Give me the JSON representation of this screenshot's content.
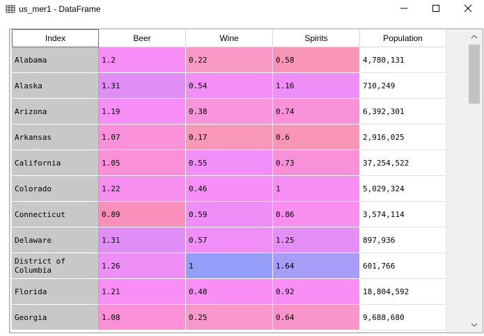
{
  "window": {
    "title": "us_mer1 - DataFrame",
    "icons": {
      "app": "table-icon",
      "minimize": "minimize-icon",
      "maximize": "maximize-icon",
      "close": "close-icon"
    }
  },
  "table": {
    "columns": [
      "Index",
      "Beer",
      "Wine",
      "Spirits",
      "Population"
    ],
    "rows": [
      {
        "index": "Alabama",
        "beer": "1.2",
        "wine": "0.22",
        "spirits": "0.58",
        "population": "4,780,131"
      },
      {
        "index": "Alaska",
        "beer": "1.31",
        "wine": "0.54",
        "spirits": "1.16",
        "population": "710,249"
      },
      {
        "index": "Arizona",
        "beer": "1.19",
        "wine": "0.38",
        "spirits": "0.74",
        "population": "6,392,301"
      },
      {
        "index": "Arkansas",
        "beer": "1.07",
        "wine": "0.17",
        "spirits": "0.6",
        "population": "2,916,025"
      },
      {
        "index": "California",
        "beer": "1.05",
        "wine": "0.55",
        "spirits": "0.73",
        "population": "37,254,522"
      },
      {
        "index": "Colorado",
        "beer": "1.22",
        "wine": "0.46",
        "spirits": "1",
        "population": "5,029,324"
      },
      {
        "index": "Connecticut",
        "beer": "0.89",
        "wine": "0.59",
        "spirits": "0.86",
        "population": "3,574,114"
      },
      {
        "index": "Delaware",
        "beer": "1.31",
        "wine": "0.57",
        "spirits": "1.25",
        "population": "897,936"
      },
      {
        "index": "District of\nColumbia",
        "beer": "1.26",
        "wine": "1",
        "spirits": "1.64",
        "population": "601,766"
      },
      {
        "index": "Florida",
        "beer": "1.21",
        "wine": "0.48",
        "spirits": "0.92",
        "population": "18,804,592"
      },
      {
        "index": "Georgia",
        "beer": "1.08",
        "wine": "0.25",
        "spirits": "0.64",
        "population": "9,688,680"
      }
    ]
  },
  "colors": {
    "beer": [
      "#f78ef7",
      "#e08ef5",
      "#f78ef7",
      "#fb91d9",
      "#fb90d9",
      "#f88ef0",
      "#f990bb",
      "#e08ef5",
      "#ee8ef7",
      "#f88ef6",
      "#fb8fd8"
    ],
    "wine": [
      "#f99ac6",
      "#f48ef7",
      "#f994dd",
      "#f998b6",
      "#f28ef7",
      "#f88ef7",
      "#f08ef8",
      "#f18ef7",
      "#949df7",
      "#f88ef6",
      "#f998cb"
    ],
    "spirits": [
      "#f995b4",
      "#ef8ef7",
      "#f991d9",
      "#f995b4",
      "#f991d8",
      "#f88ef4",
      "#f88ef0",
      "#e58ef5",
      "#a79cf6",
      "#f88ef6",
      "#f995c8"
    ],
    "index_bg": "#c8c8c8"
  }
}
